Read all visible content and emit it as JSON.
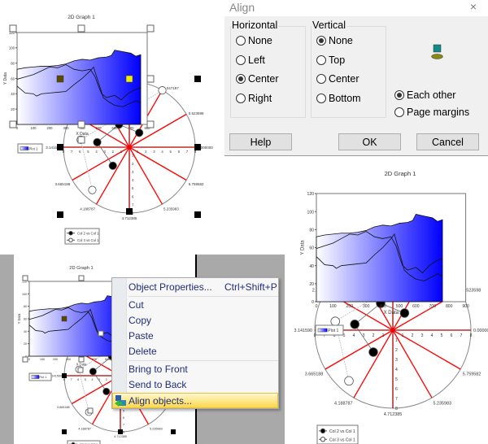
{
  "graph": {
    "title": "2D Graph 1",
    "xlabel": "X Data",
    "ylabel": "Y Data",
    "legend_plot": "Plot 1",
    "legend_series": [
      "Col 2 vs Col 1",
      "Col 3 vs Col 1"
    ]
  },
  "chart_data": {
    "type": "area",
    "title": "2D Graph 1",
    "xlabel": "X Data",
    "ylabel": "Y Data",
    "ylim": [
      0,
      120
    ],
    "yticks": [
      0,
      20,
      40,
      60,
      80,
      100,
      120
    ],
    "xticks_small": [
      0,
      100,
      200,
      300,
      400,
      500,
      600,
      700,
      800
    ],
    "xticks_large": [
      0,
      100,
      200,
      300,
      400,
      500,
      600,
      700,
      800,
      900
    ],
    "area_series": {
      "name": "Plot 1",
      "x": [
        0,
        50,
        100,
        150,
        200,
        250,
        300,
        350,
        400,
        450,
        500,
        550,
        580,
        600,
        650,
        700,
        730,
        760
      ],
      "y": [
        72,
        74,
        75,
        76,
        76,
        77,
        79,
        83,
        85,
        84,
        87,
        88,
        90,
        97,
        95,
        93,
        89,
        91
      ]
    },
    "line_series": [
      {
        "x": [
          0,
          50,
          100,
          150,
          200,
          250,
          300,
          350,
          400,
          450,
          480,
          500,
          520,
          550,
          600,
          640,
          680,
          720,
          760
        ],
        "y": [
          59,
          62,
          65,
          70,
          75,
          74,
          78,
          72,
          70,
          72,
          62,
          50,
          40,
          35,
          38,
          32,
          40,
          45,
          48
        ]
      },
      {
        "x": [
          0,
          50,
          100,
          120,
          150,
          200,
          250,
          300,
          350,
          400,
          450,
          470,
          500,
          530,
          560,
          600,
          650,
          700,
          730,
          760
        ],
        "y": [
          50,
          41,
          40,
          37,
          40,
          41,
          42,
          43,
          52,
          60,
          70,
          75,
          55,
          35,
          30,
          25,
          23,
          28,
          31,
          28
        ]
      }
    ],
    "polar": {
      "type": "polar",
      "rlim": [
        0,
        8
      ],
      "angle_labels": [
        "0.000000",
        "0.523598",
        "1.047197",
        "2.617",
        "3.141590",
        "3.665188",
        "4.188787",
        "4.712385",
        "5.235983",
        "5.759582"
      ],
      "angle_label_degrees": [
        0,
        30,
        60,
        150,
        180,
        210,
        240,
        270,
        300,
        330
      ],
      "spoke_degrees": [
        0,
        30,
        60,
        90,
        120,
        150,
        180,
        210,
        240,
        270,
        300,
        330
      ],
      "series": [
        {
          "name": "Col 2 vs Col 1",
          "marker": "filled",
          "points": [
            [
              1.2,
              1.75
            ],
            [
              -1.25,
              2.75
            ],
            [
              -3.9,
              0.6
            ],
            [
              -2,
              -2.25
            ]
          ]
        },
        {
          "name": "Col 3 vs Col 1",
          "marker": "open",
          "points": [
            [
              4,
              6.9
            ],
            [
              -5.9,
              0.9
            ],
            [
              -4.5,
              -5.2
            ]
          ]
        }
      ]
    }
  },
  "align_dialog": {
    "title": "Align",
    "close": "×",
    "horizontal": {
      "label": "Horizontal",
      "options": [
        "None",
        "Left",
        "Center",
        "Right"
      ],
      "selected": "Center"
    },
    "vertical": {
      "label": "Vertical",
      "options": [
        "None",
        "Top",
        "Center",
        "Bottom"
      ],
      "selected": "None"
    },
    "relative": {
      "options": [
        "Each other",
        "Page margins"
      ],
      "selected": "Each other"
    },
    "buttons": {
      "help": "Help",
      "ok": "OK",
      "cancel": "Cancel"
    }
  },
  "context_menu": {
    "items": [
      {
        "label": "Object Properties...",
        "shortcut": "Ctrl+Shift+P"
      },
      {
        "label": "Cut"
      },
      {
        "label": "Copy"
      },
      {
        "label": "Paste"
      },
      {
        "label": "Delete"
      },
      {
        "label": "Bring to Front"
      },
      {
        "label": "Send to Back"
      },
      {
        "label": "Align objects..."
      }
    ],
    "highlighted": "Align objects..."
  },
  "colors": {
    "spoke": "#ff0000",
    "fill_end": "#0000ff",
    "menu_text": "#1f2d7a",
    "highlight": "#fcd84a"
  }
}
